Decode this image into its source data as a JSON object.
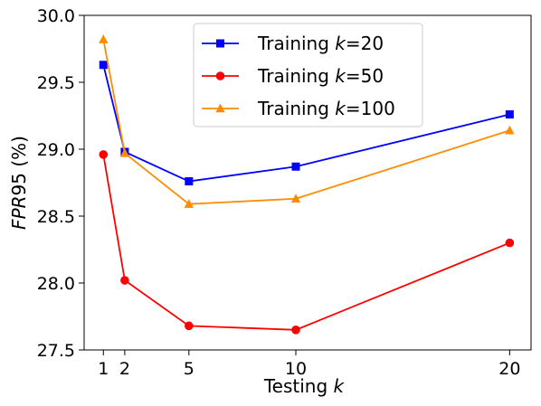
{
  "chart_data": {
    "type": "line",
    "xlabel": "Testing k",
    "ylabel": "FPR95 (%)",
    "x": [
      1,
      2,
      5,
      10,
      20
    ],
    "xticks": [
      "1",
      "2",
      "5",
      "10",
      "20"
    ],
    "yticks": [
      "27.5",
      "28.0",
      "28.5",
      "29.0",
      "29.5",
      "30.0"
    ],
    "xlim": [
      0.1,
      21.0
    ],
    "ylim": [
      27.5,
      30.0
    ],
    "grid": false,
    "legend_position": "top-center",
    "series": [
      {
        "name": "Training k=20",
        "color": "#0000ff",
        "marker": "square",
        "values": [
          29.63,
          28.98,
          28.76,
          28.87,
          29.26
        ]
      },
      {
        "name": "Training k=50",
        "color": "#ff0000",
        "marker": "circle",
        "values": [
          28.96,
          28.02,
          27.68,
          27.65,
          28.3
        ]
      },
      {
        "name": "Training k=100",
        "color": "#ff8c00",
        "marker": "triangle",
        "values": [
          29.82,
          28.97,
          28.59,
          28.63,
          29.14
        ]
      }
    ]
  }
}
